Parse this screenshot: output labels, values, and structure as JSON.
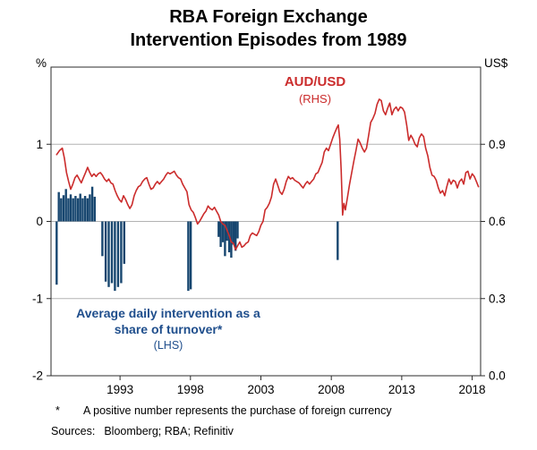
{
  "title": {
    "line1": "RBA Foreign Exchange",
    "line2": "Intervention Episodes from 1989"
  },
  "axes": {
    "left_unit": "%",
    "right_unit": "US$"
  },
  "annotations": {
    "line_series": {
      "label": "AUD/USD",
      "sub": "(RHS)"
    },
    "bar_series": {
      "label_line1": "Average daily intervention as a",
      "label_line2": "share of turnover*",
      "sub": "(LHS)"
    }
  },
  "footnote": {
    "marker": "*",
    "text": "A positive number represents the purchase of foreign currency"
  },
  "sources": {
    "label": "Sources:",
    "text": "Bloomberg; RBA; Refinitiv"
  },
  "colors": {
    "line": "#cb2c2c",
    "bars": "#17466f",
    "bars_text": "#1f4e8c",
    "grid": "#b3b3b3",
    "frame": "#2b2b2b"
  },
  "chart_data": {
    "type": "line",
    "title": "RBA Foreign Exchange Intervention Episodes from 1989",
    "xlim": [
      1988.1,
      2018.6
    ],
    "x_ticks": [
      1993,
      1998,
      2003,
      2008,
      2013,
      2018
    ],
    "gridlines": [
      1,
      0,
      -1
    ],
    "left_axis": {
      "unit": "%",
      "lim": [
        -2,
        2
      ],
      "ticks": [
        1,
        0,
        -1,
        -2
      ],
      "tick_labels": [
        "1",
        "0",
        "-1",
        "-2"
      ]
    },
    "right_axis": {
      "unit": "US$",
      "lim": [
        0,
        1.2
      ],
      "ticks": [
        0.9,
        0.6,
        0.3,
        0
      ],
      "tick_labels": [
        "0.9",
        "0.6",
        "0.3",
        "0.0"
      ]
    },
    "footnote": "A positive number represents the purchase of foreign currency",
    "sources": "Bloomberg; RBA; Refinitiv",
    "series": [
      {
        "name": "Average daily intervention as a share of turnover (LHS)",
        "type": "bar",
        "axis": "left",
        "unit": "%",
        "points": [
          [
            1988.5,
            -0.82
          ],
          [
            1988.65,
            0.38
          ],
          [
            1988.82,
            0.3
          ],
          [
            1988.99,
            0.34
          ],
          [
            1989.16,
            0.42
          ],
          [
            1989.33,
            0.3
          ],
          [
            1989.5,
            0.35
          ],
          [
            1989.67,
            0.3
          ],
          [
            1989.84,
            0.33
          ],
          [
            1990.01,
            0.3
          ],
          [
            1990.18,
            0.36
          ],
          [
            1990.35,
            0.3
          ],
          [
            1990.52,
            0.33
          ],
          [
            1990.69,
            0.3
          ],
          [
            1990.86,
            0.35
          ],
          [
            1991.03,
            0.45
          ],
          [
            1991.2,
            0.32
          ],
          [
            1991.75,
            -0.45
          ],
          [
            1991.98,
            -0.78
          ],
          [
            1992.2,
            -0.85
          ],
          [
            1992.42,
            -0.8
          ],
          [
            1992.64,
            -0.9
          ],
          [
            1992.86,
            -0.85
          ],
          [
            1993.08,
            -0.8
          ],
          [
            1993.3,
            -0.55
          ],
          [
            1997.85,
            -0.9
          ],
          [
            1998.02,
            -0.88
          ],
          [
            2000.0,
            -0.2
          ],
          [
            2000.15,
            -0.33
          ],
          [
            2000.3,
            -0.27
          ],
          [
            2000.45,
            -0.45
          ],
          [
            2000.6,
            -0.25
          ],
          [
            2000.75,
            -0.4
          ],
          [
            2000.9,
            -0.47
          ],
          [
            2001.05,
            -0.3
          ],
          [
            2001.2,
            -0.38
          ],
          [
            2001.35,
            -0.22
          ],
          [
            2008.45,
            -0.5
          ]
        ]
      },
      {
        "name": "AUD/USD (RHS)",
        "type": "line",
        "axis": "right",
        "unit": "US$",
        "points": [
          [
            1988.5,
            0.86
          ],
          [
            1988.7,
            0.875
          ],
          [
            1988.9,
            0.885
          ],
          [
            1989.05,
            0.845
          ],
          [
            1989.2,
            0.79
          ],
          [
            1989.35,
            0.755
          ],
          [
            1989.5,
            0.725
          ],
          [
            1989.65,
            0.745
          ],
          [
            1989.8,
            0.77
          ],
          [
            1989.95,
            0.78
          ],
          [
            1990.1,
            0.765
          ],
          [
            1990.25,
            0.75
          ],
          [
            1990.4,
            0.77
          ],
          [
            1990.55,
            0.79
          ],
          [
            1990.7,
            0.81
          ],
          [
            1990.85,
            0.79
          ],
          [
            1991.0,
            0.775
          ],
          [
            1991.15,
            0.785
          ],
          [
            1991.3,
            0.775
          ],
          [
            1991.45,
            0.785
          ],
          [
            1991.6,
            0.79
          ],
          [
            1991.75,
            0.78
          ],
          [
            1991.9,
            0.765
          ],
          [
            1992.05,
            0.755
          ],
          [
            1992.2,
            0.765
          ],
          [
            1992.35,
            0.75
          ],
          [
            1992.5,
            0.745
          ],
          [
            1992.65,
            0.72
          ],
          [
            1992.8,
            0.7
          ],
          [
            1992.95,
            0.685
          ],
          [
            1993.1,
            0.675
          ],
          [
            1993.25,
            0.7
          ],
          [
            1993.4,
            0.685
          ],
          [
            1993.55,
            0.665
          ],
          [
            1993.7,
            0.65
          ],
          [
            1993.85,
            0.665
          ],
          [
            1994.0,
            0.7
          ],
          [
            1994.15,
            0.72
          ],
          [
            1994.3,
            0.735
          ],
          [
            1994.45,
            0.74
          ],
          [
            1994.6,
            0.755
          ],
          [
            1994.75,
            0.765
          ],
          [
            1994.9,
            0.77
          ],
          [
            1995.05,
            0.745
          ],
          [
            1995.2,
            0.725
          ],
          [
            1995.35,
            0.73
          ],
          [
            1995.5,
            0.745
          ],
          [
            1995.65,
            0.755
          ],
          [
            1995.8,
            0.745
          ],
          [
            1995.95,
            0.755
          ],
          [
            1996.1,
            0.765
          ],
          [
            1996.25,
            0.78
          ],
          [
            1996.4,
            0.79
          ],
          [
            1996.55,
            0.785
          ],
          [
            1996.7,
            0.79
          ],
          [
            1996.85,
            0.795
          ],
          [
            1997.0,
            0.78
          ],
          [
            1997.15,
            0.77
          ],
          [
            1997.3,
            0.765
          ],
          [
            1997.45,
            0.745
          ],
          [
            1997.6,
            0.73
          ],
          [
            1997.75,
            0.715
          ],
          [
            1997.9,
            0.665
          ],
          [
            1998.05,
            0.645
          ],
          [
            1998.2,
            0.635
          ],
          [
            1998.35,
            0.615
          ],
          [
            1998.5,
            0.59
          ],
          [
            1998.65,
            0.6
          ],
          [
            1998.8,
            0.615
          ],
          [
            1998.95,
            0.63
          ],
          [
            1999.1,
            0.64
          ],
          [
            1999.25,
            0.66
          ],
          [
            1999.4,
            0.65
          ],
          [
            1999.55,
            0.645
          ],
          [
            1999.7,
            0.655
          ],
          [
            1999.85,
            0.64
          ],
          [
            2000.0,
            0.625
          ],
          [
            2000.15,
            0.6
          ],
          [
            2000.3,
            0.59
          ],
          [
            2000.45,
            0.585
          ],
          [
            2000.6,
            0.565
          ],
          [
            2000.75,
            0.545
          ],
          [
            2000.9,
            0.52
          ],
          [
            2001.05,
            0.515
          ],
          [
            2001.2,
            0.49
          ],
          [
            2001.35,
            0.505
          ],
          [
            2001.5,
            0.52
          ],
          [
            2001.65,
            0.5
          ],
          [
            2001.8,
            0.505
          ],
          [
            2001.95,
            0.515
          ],
          [
            2002.1,
            0.52
          ],
          [
            2002.25,
            0.545
          ],
          [
            2002.4,
            0.555
          ],
          [
            2002.55,
            0.55
          ],
          [
            2002.7,
            0.545
          ],
          [
            2002.85,
            0.56
          ],
          [
            2003.0,
            0.585
          ],
          [
            2003.15,
            0.6
          ],
          [
            2003.3,
            0.645
          ],
          [
            2003.45,
            0.655
          ],
          [
            2003.6,
            0.67
          ],
          [
            2003.75,
            0.695
          ],
          [
            2003.9,
            0.745
          ],
          [
            2004.05,
            0.765
          ],
          [
            2004.2,
            0.74
          ],
          [
            2004.35,
            0.715
          ],
          [
            2004.5,
            0.705
          ],
          [
            2004.65,
            0.725
          ],
          [
            2004.8,
            0.755
          ],
          [
            2004.95,
            0.775
          ],
          [
            2005.1,
            0.765
          ],
          [
            2005.25,
            0.77
          ],
          [
            2005.4,
            0.76
          ],
          [
            2005.55,
            0.755
          ],
          [
            2005.7,
            0.75
          ],
          [
            2005.85,
            0.74
          ],
          [
            2006.0,
            0.73
          ],
          [
            2006.15,
            0.745
          ],
          [
            2006.3,
            0.755
          ],
          [
            2006.45,
            0.745
          ],
          [
            2006.6,
            0.755
          ],
          [
            2006.75,
            0.765
          ],
          [
            2006.9,
            0.785
          ],
          [
            2007.05,
            0.79
          ],
          [
            2007.2,
            0.81
          ],
          [
            2007.35,
            0.83
          ],
          [
            2007.5,
            0.87
          ],
          [
            2007.65,
            0.885
          ],
          [
            2007.8,
            0.875
          ],
          [
            2007.95,
            0.9
          ],
          [
            2008.1,
            0.925
          ],
          [
            2008.25,
            0.945
          ],
          [
            2008.4,
            0.965
          ],
          [
            2008.5,
            0.975
          ],
          [
            2008.6,
            0.92
          ],
          [
            2008.7,
            0.8
          ],
          [
            2008.8,
            0.625
          ],
          [
            2008.9,
            0.67
          ],
          [
            2009.0,
            0.645
          ],
          [
            2009.15,
            0.695
          ],
          [
            2009.3,
            0.745
          ],
          [
            2009.45,
            0.79
          ],
          [
            2009.6,
            0.835
          ],
          [
            2009.75,
            0.875
          ],
          [
            2009.9,
            0.92
          ],
          [
            2010.05,
            0.905
          ],
          [
            2010.2,
            0.885
          ],
          [
            2010.35,
            0.87
          ],
          [
            2010.5,
            0.885
          ],
          [
            2010.65,
            0.935
          ],
          [
            2010.8,
            0.985
          ],
          [
            2010.95,
            1.0
          ],
          [
            2011.1,
            1.02
          ],
          [
            2011.25,
            1.055
          ],
          [
            2011.4,
            1.075
          ],
          [
            2011.55,
            1.07
          ],
          [
            2011.7,
            1.03
          ],
          [
            2011.85,
            1.015
          ],
          [
            2012.0,
            1.04
          ],
          [
            2012.15,
            1.06
          ],
          [
            2012.3,
            1.015
          ],
          [
            2012.45,
            1.035
          ],
          [
            2012.6,
            1.045
          ],
          [
            2012.75,
            1.03
          ],
          [
            2012.9,
            1.045
          ],
          [
            2013.05,
            1.04
          ],
          [
            2013.2,
            1.025
          ],
          [
            2013.35,
            0.975
          ],
          [
            2013.5,
            0.915
          ],
          [
            2013.65,
            0.935
          ],
          [
            2013.8,
            0.92
          ],
          [
            2013.95,
            0.9
          ],
          [
            2014.1,
            0.89
          ],
          [
            2014.25,
            0.925
          ],
          [
            2014.4,
            0.94
          ],
          [
            2014.55,
            0.93
          ],
          [
            2014.7,
            0.885
          ],
          [
            2014.85,
            0.855
          ],
          [
            2015.0,
            0.81
          ],
          [
            2015.15,
            0.78
          ],
          [
            2015.3,
            0.775
          ],
          [
            2015.45,
            0.76
          ],
          [
            2015.6,
            0.73
          ],
          [
            2015.75,
            0.71
          ],
          [
            2015.9,
            0.72
          ],
          [
            2016.05,
            0.7
          ],
          [
            2016.2,
            0.735
          ],
          [
            2016.35,
            0.765
          ],
          [
            2016.5,
            0.745
          ],
          [
            2016.65,
            0.76
          ],
          [
            2016.8,
            0.755
          ],
          [
            2016.95,
            0.73
          ],
          [
            2017.1,
            0.755
          ],
          [
            2017.25,
            0.765
          ],
          [
            2017.4,
            0.745
          ],
          [
            2017.55,
            0.79
          ],
          [
            2017.7,
            0.795
          ],
          [
            2017.85,
            0.765
          ],
          [
            2018.0,
            0.785
          ],
          [
            2018.15,
            0.775
          ],
          [
            2018.3,
            0.755
          ],
          [
            2018.45,
            0.735
          ]
        ]
      }
    ]
  }
}
